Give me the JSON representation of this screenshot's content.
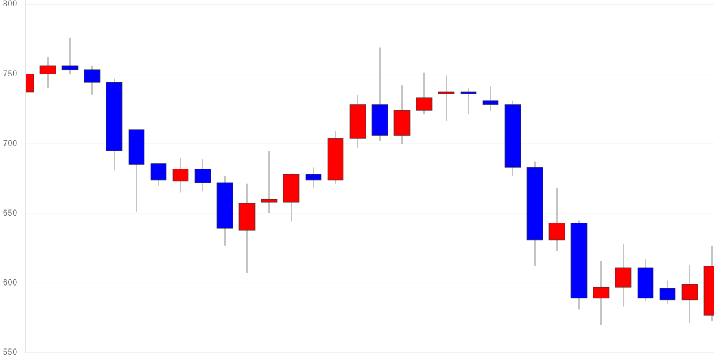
{
  "chart_data": {
    "type": "candlestick",
    "open": [
      737,
      750,
      756,
      753,
      744,
      710,
      686,
      673,
      682,
      672,
      638,
      658,
      658,
      678,
      674,
      704,
      728,
      706,
      724,
      736,
      737,
      731,
      728,
      683,
      631,
      643,
      589,
      597,
      611,
      596,
      588,
      577
    ],
    "high": [
      762,
      762,
      776,
      756,
      747,
      710,
      686,
      690,
      689,
      677,
      671,
      695,
      679,
      683,
      709,
      735,
      769,
      742,
      751,
      749,
      740,
      741,
      731,
      687,
      668,
      645,
      616,
      628,
      617,
      602,
      613,
      627
    ],
    "low": [
      730,
      740,
      750,
      735,
      681,
      651,
      670,
      665,
      666,
      627,
      607,
      650,
      644,
      668,
      671,
      697,
      702,
      700,
      721,
      716,
      721,
      723,
      677,
      612,
      623,
      581,
      570,
      583,
      587,
      585,
      571,
      573
    ],
    "close": [
      750,
      756,
      753,
      744,
      695,
      685,
      674,
      682,
      672,
      639,
      657,
      660,
      678,
      674,
      704,
      728,
      706,
      724,
      733,
      737,
      736,
      728,
      683,
      631,
      643,
      589,
      597,
      611,
      589,
      588,
      599,
      612
    ],
    "up_color": "#ff0000",
    "down_color": "#0000ff",
    "ylim": [
      550,
      800
    ],
    "yticks": [
      550,
      600,
      650,
      700,
      750,
      800
    ],
    "grid": true
  }
}
